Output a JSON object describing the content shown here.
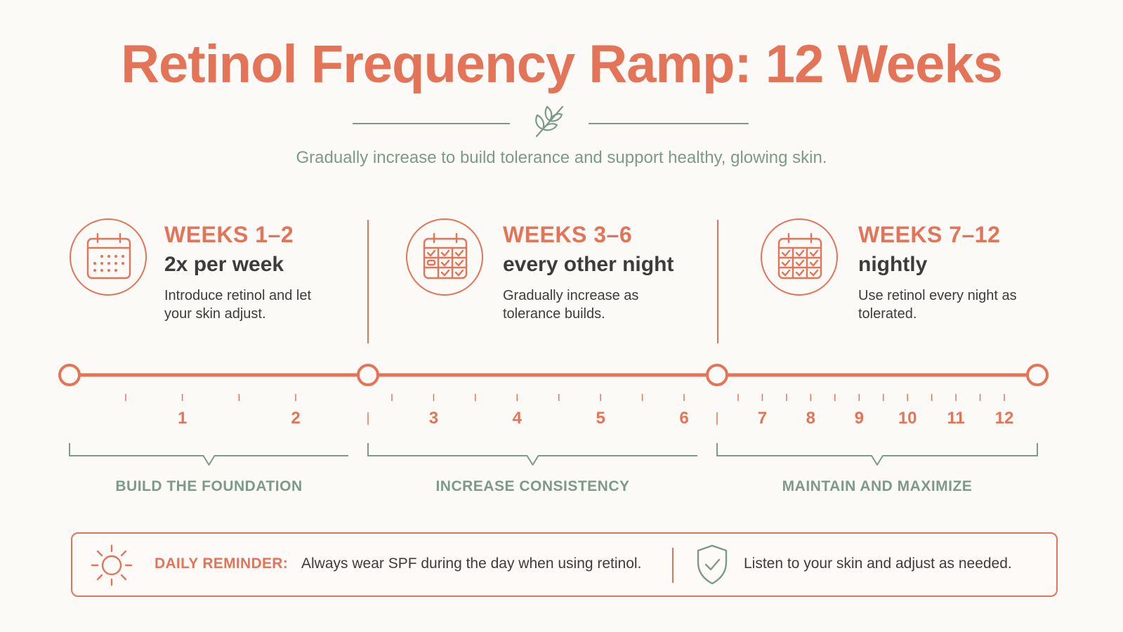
{
  "header": {
    "title": "Retinol Frequency Ramp: 12 Weeks",
    "subtitle": "Gradually increase to build tolerance and support healthy, glowing skin."
  },
  "colors": {
    "accent": "#e47458",
    "sage": "#7d9a89",
    "text": "#3c3c3c",
    "background": "#fcfaf7"
  },
  "icons": {
    "divider": "leaf-sprig-icon",
    "reminder": "sun-icon",
    "note": "shield-check-icon",
    "phases": [
      "calendar-dots-icon",
      "calendar-check-icon",
      "calendar-check-icon"
    ]
  },
  "phases": [
    {
      "title": "WEEKS 1–2",
      "frequency": "2x per week",
      "description": "Introduce retinol and let your skin adjust.",
      "bracket_label": "BUILD THE FOUNDATION",
      "start_week": 0,
      "end_week": 2
    },
    {
      "title": "WEEKS 3–6",
      "frequency": "every other night",
      "description": "Gradually increase as tolerance builds.",
      "bracket_label": "INCREASE CONSISTENCY",
      "start_week": 2,
      "end_week": 6
    },
    {
      "title": "WEEKS 7–12",
      "frequency": "nightly",
      "description": "Use retinol every night as tolerated.",
      "bracket_label": "MAINTAIN AND MAXIMIZE",
      "start_week": 6,
      "end_week": 12
    }
  ],
  "week_labels": [
    "1",
    "2",
    "3",
    "4",
    "5",
    "6",
    "7",
    "8",
    "9",
    "10",
    "11",
    "12"
  ],
  "reminder": {
    "label": "DAILY REMINDER:",
    "text": "Always wear SPF during the day when using retinol.",
    "note": "Listen to your skin and adjust as needed."
  }
}
